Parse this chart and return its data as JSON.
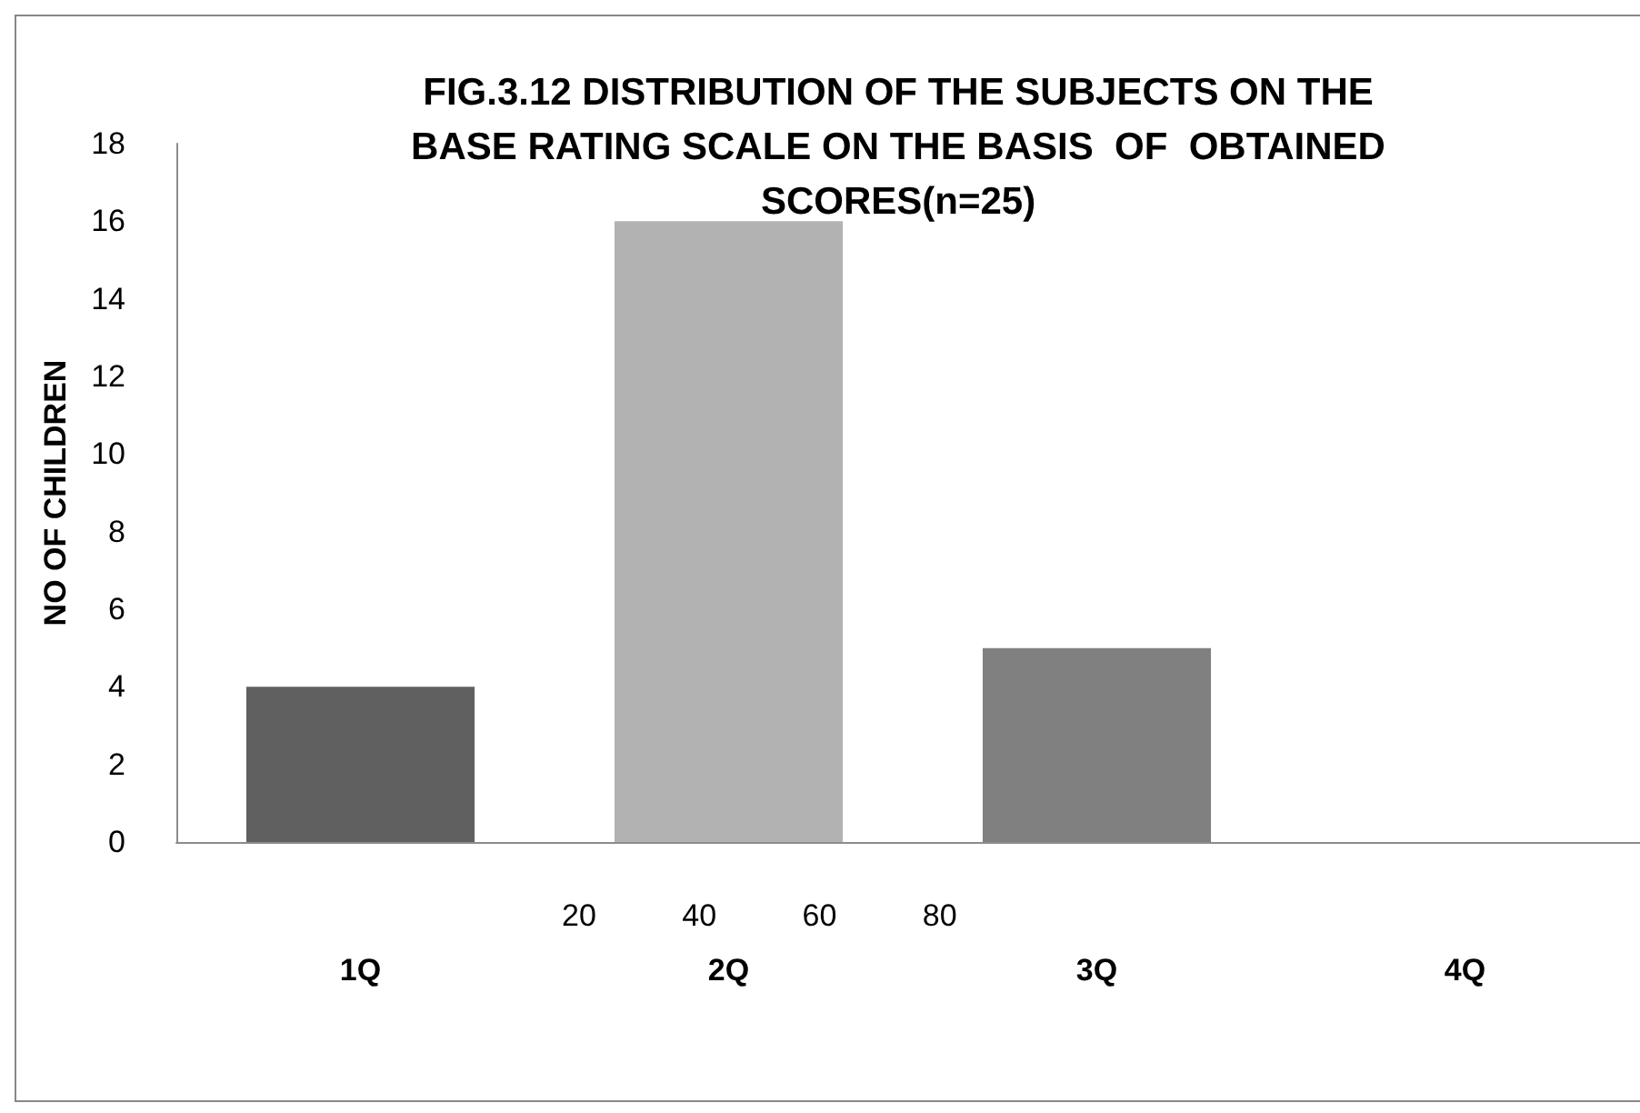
{
  "chart_data": {
    "type": "bar",
    "title": "FIG.3.12 DISTRIBUTION OF THE SUBJECTS ON THE\nBASE RATING SCALE ON THE BASIS  OF  OBTAINED\nSCORES(n=25)",
    "ylabel": "NO OF CHILDREN",
    "categories": [
      "1Q",
      "2Q",
      "3Q",
      "4Q"
    ],
    "values": [
      4,
      16,
      5,
      0
    ],
    "colors": [
      "#606060",
      "#b2b2b2",
      "#808080",
      "#4d4d4d"
    ],
    "annotations": [
      "20          40          60          80"
    ],
    "ylim": [
      0,
      18
    ],
    "yticks": [
      0,
      2,
      4,
      6,
      8,
      10,
      12,
      14,
      16,
      18
    ],
    "grid": false
  }
}
